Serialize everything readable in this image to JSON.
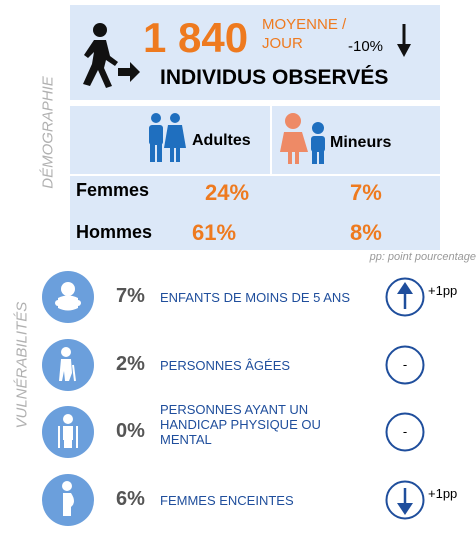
{
  "demographie": {
    "label": "DÉMOGRAPHIE",
    "total": "1 840",
    "unit_lines": [
      "MOYENNE /",
      "JOUR"
    ],
    "change": "-10%",
    "subtitle": "INDIVIDUS OBSERVÉS",
    "columns": [
      "Adultes",
      "Mineurs"
    ],
    "rows": [
      {
        "label": "Femmes",
        "values": [
          "24%",
          "7%"
        ]
      },
      {
        "label": "Hommes",
        "values": [
          "61%",
          "8%"
        ]
      }
    ],
    "note": "pp: point pourcentage"
  },
  "vulnerabilites": {
    "label": "VULNÉRABILITÉS",
    "items": [
      {
        "value": "7%",
        "label_lines": [
          "ENFANTS DE MOINS DE 5 ANS"
        ],
        "trend": "+1pp"
      },
      {
        "value": "2%",
        "label_lines": [
          "PERSONNES ÂGÉES"
        ],
        "trend": "-"
      },
      {
        "value": "0%",
        "label_lines": [
          "PERSONNES AYANT UN",
          "HANDICAP PHYSIQUE OU",
          "MENTAL"
        ],
        "trend": "-"
      },
      {
        "value": "6%",
        "label_lines": [
          "FEMMES ENCEINTES"
        ],
        "trend": "+1pp"
      }
    ]
  }
}
